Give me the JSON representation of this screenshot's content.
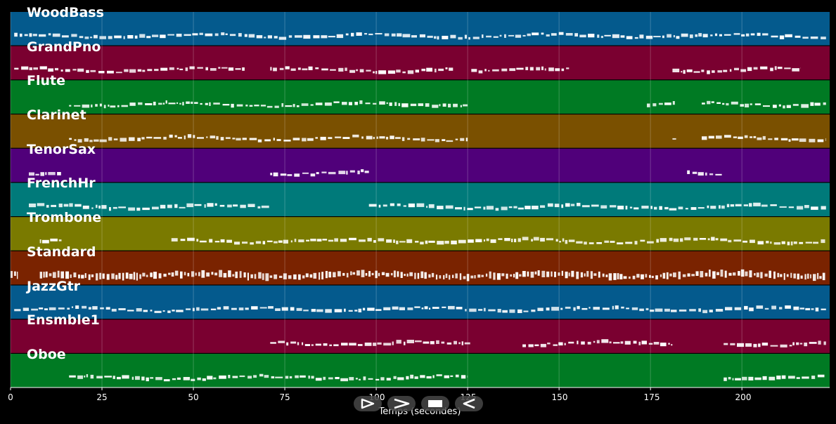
{
  "tracks": [
    {
      "name": "WoodBass",
      "color": "#045a8d",
      "segments": [
        [
          1,
          223
        ]
      ]
    },
    {
      "name": "GrandPno",
      "color": "#7a0030",
      "segments": [
        [
          1,
          64
        ],
        [
          71,
          121
        ],
        [
          126,
          153
        ],
        [
          181,
          216
        ]
      ]
    },
    {
      "name": "Flute",
      "color": "#007a23",
      "segments": [
        [
          16,
          125
        ],
        [
          174,
          182
        ],
        [
          189,
          223
        ]
      ]
    },
    {
      "name": "Clarinet",
      "color": "#7a5000",
      "segments": [
        [
          16,
          125
        ],
        [
          181,
          182
        ],
        [
          189,
          223
        ]
      ]
    },
    {
      "name": "TenorSax",
      "color": "#50007a",
      "segments": [
        [
          5,
          14
        ],
        [
          71,
          98
        ],
        [
          185,
          195
        ]
      ]
    },
    {
      "name": "FrenchHr",
      "color": "#007a7a",
      "segments": [
        [
          5,
          71
        ],
        [
          98,
          223
        ]
      ]
    },
    {
      "name": "Trombone",
      "color": "#7a7a00",
      "segments": [
        [
          8,
          14
        ],
        [
          44,
          223
        ]
      ]
    },
    {
      "name": "Standard",
      "color": "#7a2300",
      "segments": [
        [
          0,
          2
        ],
        [
          8,
          223
        ]
      ]
    },
    {
      "name": "JazzGtr",
      "color": "#045a8d",
      "segments": [
        [
          1,
          223
        ]
      ]
    },
    {
      "name": "Ensmble1",
      "color": "#7a0030",
      "segments": [
        [
          71,
          126
        ],
        [
          140,
          181
        ],
        [
          195,
          223
        ]
      ]
    },
    {
      "name": "Oboe",
      "color": "#007a23",
      "segments": [
        [
          16,
          125
        ],
        [
          195,
          223
        ]
      ]
    }
  ],
  "axis": {
    "xlabel": "Temps (secondes)",
    "ticks": [
      "0",
      "25",
      "50",
      "75",
      "100",
      "125",
      "150",
      "175",
      "200"
    ],
    "tick_values": [
      0,
      25,
      50,
      75,
      100,
      125,
      150,
      175,
      200
    ],
    "xlim": [
      0,
      224
    ]
  },
  "controls": [
    {
      "name": "play-button",
      "icon": "play-icon"
    },
    {
      "name": "fast-forward-button",
      "icon": "fast-forward-icon"
    },
    {
      "name": "stop-button",
      "icon": "stop-icon"
    },
    {
      "name": "rewind-button",
      "icon": "rewind-icon"
    }
  ]
}
